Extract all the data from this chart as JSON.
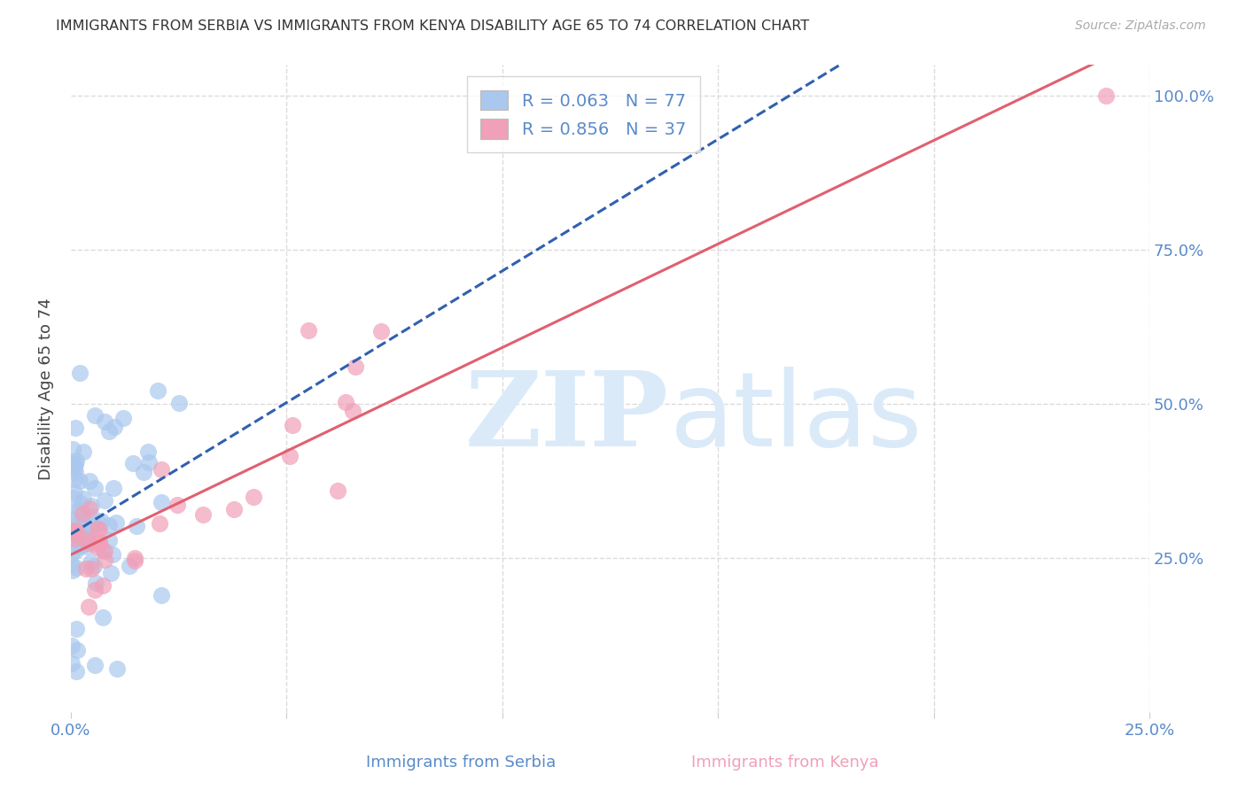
{
  "title": "IMMIGRANTS FROM SERBIA VS IMMIGRANTS FROM KENYA DISABILITY AGE 65 TO 74 CORRELATION CHART",
  "source": "Source: ZipAtlas.com",
  "ylabel_label": "Disability Age 65 to 74",
  "xlabel_serbia": "Immigrants from Serbia",
  "xlabel_kenya": "Immigrants from Kenya",
  "serbia_color": "#aac8ee",
  "kenya_color": "#f0a0b8",
  "serbia_line_color": "#3060b0",
  "kenya_line_color": "#e06070",
  "axis_label_color": "#5a8aca",
  "grid_color": "#d8d8d8",
  "background_color": "#ffffff",
  "title_color": "#333333",
  "source_color": "#aaaaaa",
  "watermark_color": "#daeaf8",
  "x_min": 0.0,
  "x_max": 0.25,
  "y_min": 0.0,
  "y_max": 1.05,
  "y_ticks": [
    0.0,
    0.25,
    0.5,
    0.75,
    1.0
  ],
  "y_tick_labels_right": [
    "",
    "25.0%",
    "50.0%",
    "75.0%",
    "100.0%"
  ],
  "x_ticks": [
    0.0,
    0.05,
    0.1,
    0.15,
    0.2,
    0.25
  ],
  "serbia_seed": 42,
  "kenya_seed": 99
}
